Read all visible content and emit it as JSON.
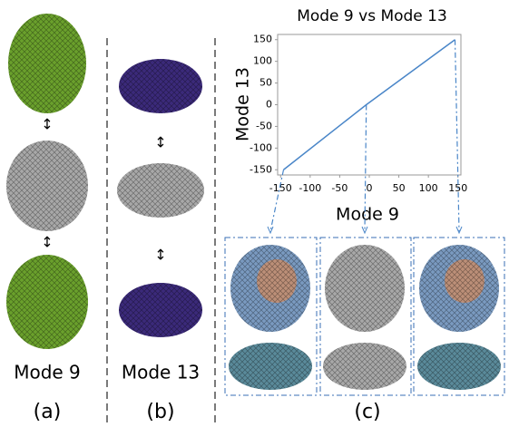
{
  "panels": {
    "a": {
      "mode_label": "Mode 9",
      "label": "(a)"
    },
    "b": {
      "mode_label": "Mode  13",
      "label": "(b)"
    },
    "c": {
      "label": "(c)"
    }
  },
  "chart_data": {
    "type": "line",
    "title": "Mode 9 vs Mode 13",
    "x_label": "Mode 9",
    "y_label": "Mode  13",
    "x": [
      -145,
      -5,
      145
    ],
    "values": [
      -150,
      0,
      150
    ],
    "color": "#4a86c8",
    "xlim": [
      -155,
      155
    ],
    "ylim": [
      -162,
      162
    ],
    "xticks": [
      -150,
      -100,
      -50,
      0,
      50,
      100,
      150
    ],
    "yticks": [
      -150,
      -100,
      -50,
      0,
      50,
      100,
      150
    ]
  }
}
